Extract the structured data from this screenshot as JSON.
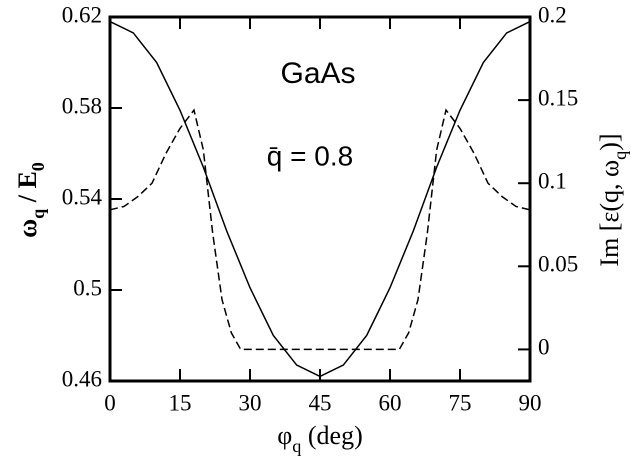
{
  "chart_data": {
    "type": "line",
    "xlabel": [
      "φ",
      "q",
      " (deg)"
    ],
    "ylabel": [
      "ω",
      "q",
      " / E",
      "0"
    ],
    "y2label": [
      "Im [ε(q, ω",
      "q",
      ")]"
    ],
    "annotations": [
      "GaAs",
      "q̄ = 0.8"
    ],
    "xlim": [
      0,
      90
    ],
    "xticks": [
      0,
      15,
      30,
      45,
      60,
      75,
      90
    ],
    "ylim": [
      0.46,
      0.62
    ],
    "yticks": [
      0.46,
      0.5,
      0.54,
      0.58,
      0.62
    ],
    "y2lim": [
      -0.019,
      0.2
    ],
    "y2ticks": [
      0,
      0.05,
      0.1,
      0.15,
      0.2
    ],
    "series": [
      {
        "color": "#000000",
        "dash": "none",
        "axis": "y",
        "x": [
          0,
          5,
          10,
          15,
          20,
          25,
          30,
          35,
          40,
          45,
          50,
          55,
          60,
          65,
          70,
          75,
          80,
          85,
          90
        ],
        "values": [
          0.618,
          0.613,
          0.6,
          0.579,
          0.554,
          0.526,
          0.501,
          0.48,
          0.467,
          0.462,
          0.467,
          0.48,
          0.501,
          0.526,
          0.554,
          0.579,
          0.6,
          0.613,
          0.618
        ]
      },
      {
        "color": "#000000",
        "dash": "8 4",
        "axis": "y2",
        "x": [
          0,
          3,
          6,
          9,
          12,
          15,
          18,
          20,
          22,
          24,
          26,
          28,
          62,
          64,
          66,
          68,
          70,
          72,
          75,
          78,
          81,
          84,
          87,
          90
        ],
        "values": [
          0.084,
          0.086,
          0.092,
          0.1,
          0.118,
          0.133,
          0.144,
          0.12,
          0.07,
          0.03,
          0.01,
          0,
          0,
          0.01,
          0.03,
          0.07,
          0.12,
          0.144,
          0.133,
          0.118,
          0.1,
          0.092,
          0.086,
          0.084
        ]
      }
    ]
  }
}
